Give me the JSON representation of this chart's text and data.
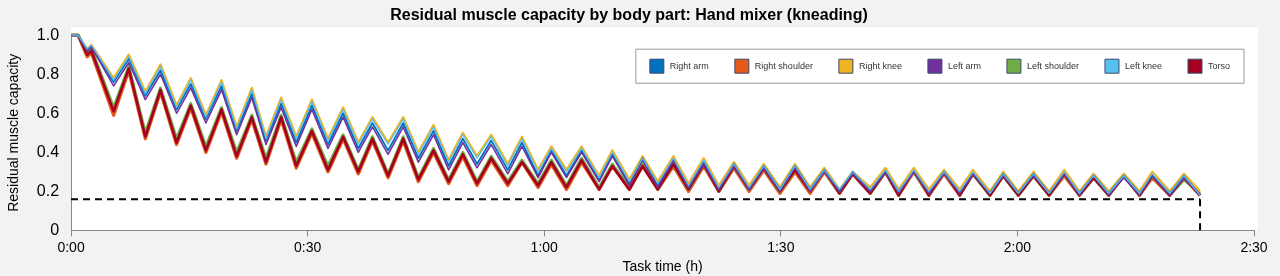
{
  "chart_data": {
    "type": "line",
    "title": "Residual muscle capacity by body part: Hand mixer (kneading)",
    "xlabel": "Task time (h)",
    "ylabel": "Residual muscle capacity",
    "x": [
      0,
      0.015,
      0.034,
      0.043,
      0.09,
      0.122,
      0.157,
      0.189,
      0.223,
      0.253,
      0.285,
      0.318,
      0.35,
      0.382,
      0.412,
      0.444,
      0.476,
      0.509,
      0.543,
      0.575,
      0.607,
      0.637,
      0.67,
      0.702,
      0.734,
      0.766,
      0.798,
      0.828,
      0.858,
      0.888,
      0.923,
      0.953,
      0.987,
      1.015,
      1.047,
      1.079,
      1.116,
      1.144,
      1.18,
      1.208,
      1.24,
      1.273,
      1.305,
      1.337,
      1.369,
      1.401,
      1.433,
      1.464,
      1.498,
      1.53,
      1.562,
      1.592,
      1.624,
      1.652,
      1.689,
      1.721,
      1.749,
      1.781,
      1.813,
      1.845,
      1.878,
      1.906,
      1.942,
      1.97,
      2.002,
      2.034,
      2.067,
      2.099,
      2.131,
      2.161,
      2.193,
      2.225,
      2.258,
      2.285,
      2.322,
      2.352,
      2.386
    ],
    "series": [
      {
        "name": "Right arm",
        "color": "#0070c0",
        "values": [
          1,
          1,
          0.92,
          0.94,
          0.76,
          0.88,
          0.69,
          0.82,
          0.62,
          0.75,
          0.57,
          0.74,
          0.51,
          0.7,
          0.46,
          0.65,
          0.45,
          0.64,
          0.44,
          0.6,
          0.42,
          0.55,
          0.41,
          0.55,
          0.37,
          0.51,
          0.33,
          0.47,
          0.34,
          0.46,
          0.31,
          0.45,
          0.28,
          0.41,
          0.28,
          0.41,
          0.26,
          0.39,
          0.24,
          0.37,
          0.23,
          0.36,
          0.22,
          0.35,
          0.21,
          0.34,
          0.21,
          0.33,
          0.21,
          0.33,
          0.21,
          0.31,
          0.2,
          0.3,
          0.2,
          0.3,
          0.2,
          0.3,
          0.19,
          0.3,
          0.19,
          0.29,
          0.19,
          0.29,
          0.19,
          0.29,
          0.19,
          0.29,
          0.19,
          0.28,
          0.19,
          0.28,
          0.19,
          0.28,
          0.19,
          0.28,
          0.18
        ]
      },
      {
        "name": "Right shoulder",
        "color": "#e35a1a",
        "values": [
          1,
          1,
          0.89,
          0.91,
          0.59,
          0.82,
          0.47,
          0.71,
          0.44,
          0.63,
          0.4,
          0.61,
          0.37,
          0.57,
          0.34,
          0.57,
          0.32,
          0.5,
          0.3,
          0.47,
          0.29,
          0.46,
          0.27,
          0.46,
          0.25,
          0.4,
          0.24,
          0.38,
          0.23,
          0.36,
          0.23,
          0.35,
          0.22,
          0.34,
          0.21,
          0.35,
          0.21,
          0.33,
          0.21,
          0.33,
          0.21,
          0.33,
          0.2,
          0.33,
          0.2,
          0.32,
          0.2,
          0.31,
          0.19,
          0.3,
          0.19,
          0.3,
          0.19,
          0.29,
          0.19,
          0.3,
          0.18,
          0.3,
          0.18,
          0.29,
          0.18,
          0.29,
          0.18,
          0.28,
          0.18,
          0.28,
          0.18,
          0.28,
          0.18,
          0.27,
          0.18,
          0.28,
          0.18,
          0.27,
          0.18,
          0.27,
          0.18
        ]
      },
      {
        "name": "Right knee",
        "color": "#f0b323",
        "values": [
          1,
          1,
          0.93,
          0.95,
          0.78,
          0.9,
          0.71,
          0.85,
          0.64,
          0.78,
          0.59,
          0.77,
          0.53,
          0.73,
          0.48,
          0.68,
          0.48,
          0.67,
          0.47,
          0.63,
          0.45,
          0.58,
          0.45,
          0.58,
          0.4,
          0.54,
          0.36,
          0.5,
          0.38,
          0.49,
          0.34,
          0.48,
          0.31,
          0.43,
          0.31,
          0.43,
          0.28,
          0.41,
          0.26,
          0.38,
          0.25,
          0.38,
          0.24,
          0.37,
          0.23,
          0.35,
          0.23,
          0.34,
          0.22,
          0.34,
          0.22,
          0.32,
          0.21,
          0.3,
          0.22,
          0.32,
          0.21,
          0.32,
          0.21,
          0.31,
          0.21,
          0.31,
          0.2,
          0.3,
          0.2,
          0.3,
          0.2,
          0.31,
          0.2,
          0.29,
          0.2,
          0.29,
          0.2,
          0.3,
          0.2,
          0.29,
          0.2
        ]
      },
      {
        "name": "Left arm",
        "color": "#7030a0",
        "values": [
          1,
          1,
          0.92,
          0.94,
          0.74,
          0.86,
          0.67,
          0.8,
          0.6,
          0.73,
          0.55,
          0.72,
          0.49,
          0.68,
          0.44,
          0.63,
          0.43,
          0.62,
          0.42,
          0.58,
          0.4,
          0.53,
          0.39,
          0.53,
          0.35,
          0.49,
          0.31,
          0.45,
          0.32,
          0.44,
          0.29,
          0.43,
          0.27,
          0.4,
          0.27,
          0.4,
          0.25,
          0.38,
          0.23,
          0.36,
          0.22,
          0.36,
          0.22,
          0.34,
          0.21,
          0.33,
          0.21,
          0.32,
          0.2,
          0.32,
          0.2,
          0.3,
          0.2,
          0.29,
          0.2,
          0.3,
          0.19,
          0.3,
          0.19,
          0.29,
          0.19,
          0.29,
          0.19,
          0.28,
          0.19,
          0.28,
          0.19,
          0.29,
          0.18,
          0.28,
          0.18,
          0.27,
          0.18,
          0.28,
          0.18,
          0.27,
          0.18
        ]
      },
      {
        "name": "Left shoulder",
        "color": "#70ad47",
        "values": [
          1,
          1,
          0.91,
          0.93,
          0.63,
          0.84,
          0.5,
          0.73,
          0.47,
          0.65,
          0.43,
          0.63,
          0.4,
          0.59,
          0.37,
          0.59,
          0.35,
          0.52,
          0.33,
          0.49,
          0.31,
          0.48,
          0.29,
          0.48,
          0.27,
          0.42,
          0.26,
          0.4,
          0.25,
          0.38,
          0.25,
          0.36,
          0.24,
          0.36,
          0.23,
          0.37,
          0.22,
          0.34,
          0.22,
          0.34,
          0.21,
          0.34,
          0.21,
          0.34,
          0.2,
          0.33,
          0.21,
          0.32,
          0.2,
          0.31,
          0.2,
          0.31,
          0.19,
          0.29,
          0.19,
          0.3,
          0.18,
          0.31,
          0.18,
          0.3,
          0.18,
          0.29,
          0.18,
          0.28,
          0.18,
          0.28,
          0.18,
          0.29,
          0.18,
          0.27,
          0.18,
          0.28,
          0.18,
          0.28,
          0.18,
          0.26,
          0.19
        ]
      },
      {
        "name": "Left knee",
        "color": "#56c1f0",
        "values": [
          1,
          1,
          0.93,
          0.95,
          0.77,
          0.89,
          0.7,
          0.84,
          0.63,
          0.77,
          0.58,
          0.76,
          0.52,
          0.72,
          0.47,
          0.67,
          0.47,
          0.66,
          0.46,
          0.62,
          0.44,
          0.57,
          0.44,
          0.57,
          0.39,
          0.53,
          0.35,
          0.49,
          0.37,
          0.48,
          0.33,
          0.47,
          0.3,
          0.42,
          0.3,
          0.42,
          0.27,
          0.4,
          0.25,
          0.37,
          0.24,
          0.37,
          0.23,
          0.36,
          0.22,
          0.34,
          0.22,
          0.33,
          0.21,
          0.33,
          0.21,
          0.31,
          0.21,
          0.3,
          0.21,
          0.31,
          0.2,
          0.31,
          0.2,
          0.3,
          0.2,
          0.3,
          0.19,
          0.29,
          0.19,
          0.29,
          0.19,
          0.3,
          0.19,
          0.28,
          0.19,
          0.28,
          0.19,
          0.29,
          0.19,
          0.28,
          0.18
        ]
      },
      {
        "name": "Torso",
        "color": "#a50021",
        "values": [
          1,
          1,
          0.9,
          0.92,
          0.61,
          0.83,
          0.48,
          0.72,
          0.45,
          0.64,
          0.41,
          0.62,
          0.38,
          0.58,
          0.35,
          0.58,
          0.33,
          0.51,
          0.31,
          0.48,
          0.3,
          0.47,
          0.28,
          0.47,
          0.26,
          0.41,
          0.25,
          0.39,
          0.24,
          0.37,
          0.24,
          0.35,
          0.23,
          0.35,
          0.22,
          0.36,
          0.21,
          0.33,
          0.21,
          0.33,
          0.21,
          0.34,
          0.21,
          0.34,
          0.2,
          0.33,
          0.21,
          0.32,
          0.2,
          0.31,
          0.2,
          0.31,
          0.19,
          0.29,
          0.19,
          0.3,
          0.18,
          0.31,
          0.18,
          0.3,
          0.18,
          0.29,
          0.18,
          0.28,
          0.18,
          0.28,
          0.18,
          0.29,
          0.18,
          0.27,
          0.18,
          0.28,
          0.18,
          0.28,
          0.18,
          0.27,
          0.18
        ]
      }
    ],
    "xlim": [
      0,
      2.5
    ],
    "xticks": [
      {
        "value": 0,
        "label": "0:00"
      },
      {
        "value": 0.5,
        "label": "0:30"
      },
      {
        "value": 1,
        "label": "1:00"
      },
      {
        "value": 1.5,
        "label": "1:30"
      },
      {
        "value": 2,
        "label": "2:00"
      },
      {
        "value": 2.5,
        "label": "2:30"
      }
    ],
    "ylim": [
      0,
      1
    ],
    "yticks": [
      0,
      0.2,
      0.4,
      0.6,
      0.8,
      {
        "value": 1,
        "label": "1.0"
      }
    ],
    "legend": "top right",
    "ref_lines": [
      {
        "axis": "y",
        "value": 0.16,
        "line_style": "dashed"
      },
      {
        "axis": "x",
        "value": 2.386,
        "line_style": "dashed"
      }
    ]
  }
}
